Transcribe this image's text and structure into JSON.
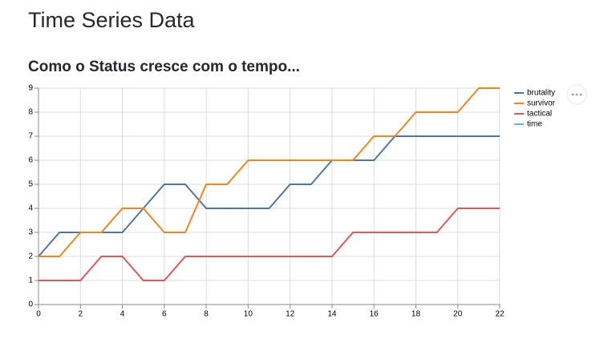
{
  "header": {
    "title": "Time Series Data",
    "subtitle": "Como o Status cresce com o tempo..."
  },
  "chart_data": {
    "type": "line",
    "x": [
      0,
      1,
      2,
      3,
      4,
      5,
      6,
      7,
      8,
      9,
      10,
      11,
      12,
      13,
      14,
      15,
      16,
      17,
      18,
      19,
      20,
      21,
      22
    ],
    "series": [
      {
        "name": "brutality",
        "color": "#4c78a8",
        "values": [
          2,
          3,
          3,
          3,
          3,
          4,
          5,
          5,
          4,
          4,
          4,
          4,
          5,
          5,
          6,
          6,
          6,
          7,
          7,
          7,
          7,
          7,
          7
        ]
      },
      {
        "name": "survivor",
        "color": "#f58518",
        "values": [
          2,
          2,
          3,
          3,
          4,
          4,
          3,
          3,
          5,
          5,
          6,
          6,
          6,
          6,
          6,
          6,
          7,
          7,
          8,
          8,
          8,
          9,
          9
        ]
      },
      {
        "name": "tactical",
        "color": "#e45756",
        "values": [
          1,
          1,
          1,
          2,
          2,
          1,
          1,
          2,
          2,
          2,
          2,
          2,
          2,
          2,
          2,
          3,
          3,
          3,
          3,
          3,
          4,
          4,
          4
        ]
      },
      {
        "name": "time",
        "color": "#72b7b2"
      }
    ],
    "xlim": [
      0,
      22
    ],
    "xticks": [
      0,
      2,
      4,
      6,
      8,
      10,
      12,
      14,
      16,
      18,
      20,
      22
    ],
    "ylim": [
      0,
      9
    ],
    "yticks": [
      0,
      1,
      2,
      3,
      4,
      5,
      6,
      7,
      8,
      9
    ],
    "grid": true,
    "legend": "right"
  }
}
